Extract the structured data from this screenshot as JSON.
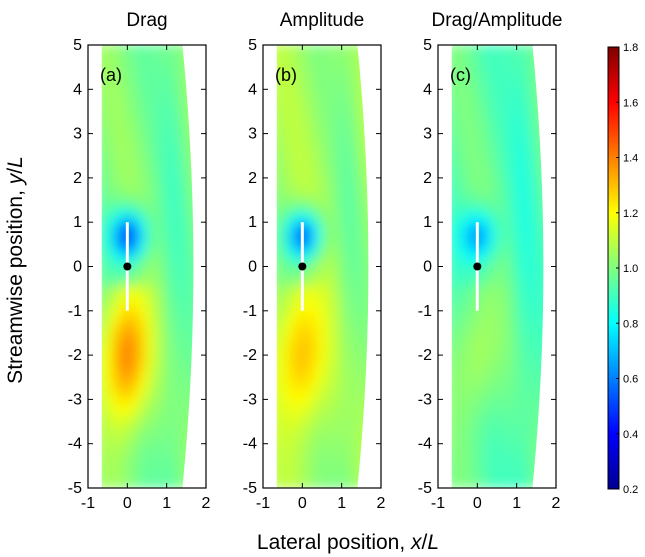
{
  "chart_data": {
    "type": "heatmap",
    "panels": [
      {
        "title": "Drag",
        "label": "(a)",
        "field": "drag"
      },
      {
        "title": "Amplitude",
        "label": "(b)",
        "field": "amplitude"
      },
      {
        "title": "Drag/Amplitude",
        "label": "(c)",
        "field": "ratio"
      }
    ],
    "xlabel": "Lateral position, x/L",
    "ylabel": "Streamwise position, y/L",
    "xlim": [
      -1,
      2
    ],
    "ylim": [
      -5,
      5
    ],
    "xticks": [
      "-1",
      "0",
      "1",
      "2"
    ],
    "yticks": [
      "5",
      "4",
      "3",
      "2",
      "1",
      "0",
      "-1",
      "-2",
      "-3",
      "-4",
      "-5"
    ],
    "colorbar": {
      "min": 0.2,
      "max": 1.8,
      "ticks": [
        "1.8",
        "1.6",
        "1.4",
        "1.2",
        "1.0",
        "0.8",
        "0.6",
        "0.4",
        "0.2"
      ],
      "colormap": "jet"
    },
    "data_region_x": [
      -0.65,
      1.4
    ],
    "body": {
      "x": 0,
      "y_range": [
        -1,
        1
      ],
      "pivot": [
        0,
        0
      ]
    },
    "field_summary": {
      "drag": {
        "upstream_far": 1.0,
        "near_upstream_min": 0.45,
        "downstream_max": 1.45
      },
      "amplitude": {
        "upstream_far": 1.05,
        "near_upstream_min": 0.5,
        "downstream_max": 1.35
      },
      "ratio": {
        "upstream_far": 0.95,
        "near_upstream_min": 0.6,
        "downstream_max": 1.1
      }
    }
  }
}
